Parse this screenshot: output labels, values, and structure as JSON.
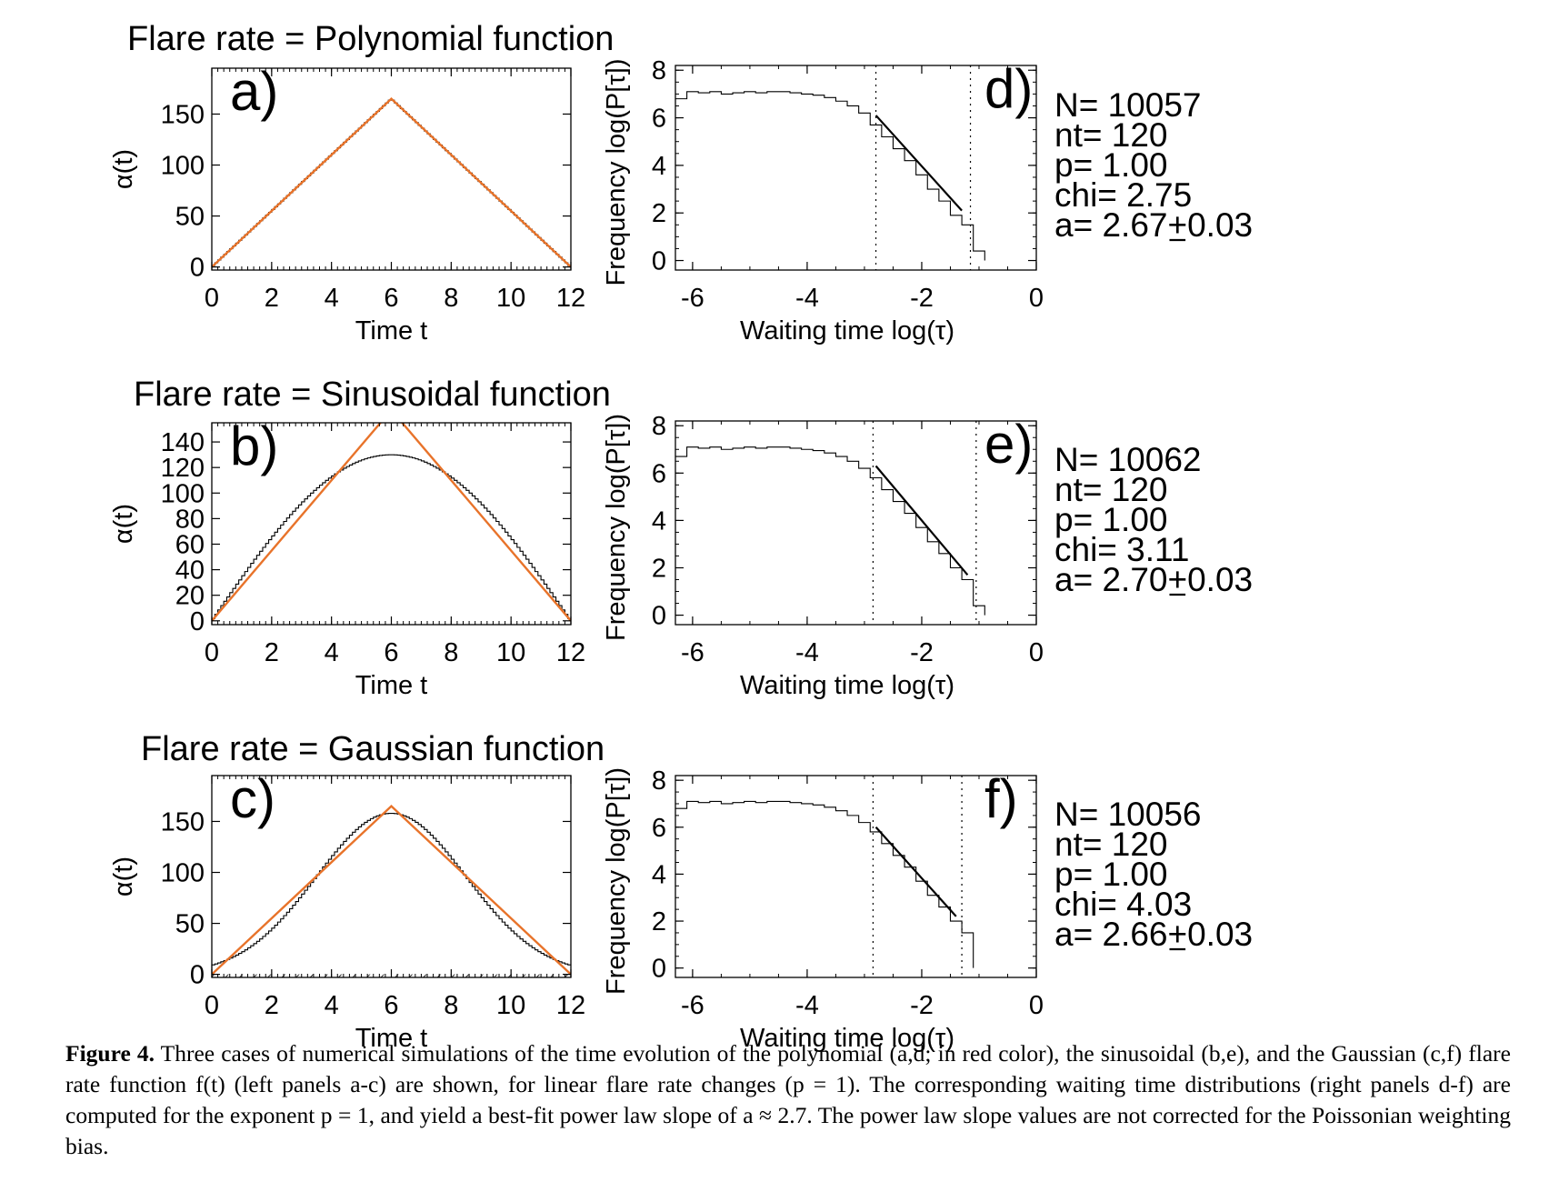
{
  "colors": {
    "model": "#e8732a",
    "histogram": "#000000",
    "fit": "#000000"
  },
  "caption": {
    "label": "Figure 4.",
    "text": "Three cases of numerical simulations of the time evolution of the polynomial (a,d; in red color), the sinusoidal (b,e), and the Gaussian (c,f) flare rate function f(t) (left panels a-c) are shown, for linear flare rate changes (p = 1). The corresponding waiting time distributions (right panels d-f) are computed for the exponent p = 1, and yield a best-fit power law slope of a ≈ 2.7. The power law slope values are not corrected for the Poissonian weighting bias."
  },
  "chart_data": [
    {
      "type": "line",
      "panel": "a)",
      "title": "Flare rate = Polynomial function",
      "xlabel": "Time t",
      "ylabel": "α(t)",
      "xlim": [
        0,
        12
      ],
      "ylim": [
        -3,
        195
      ],
      "x_ticks": [
        "0",
        "2",
        "4",
        "6",
        "8",
        "10",
        "12"
      ],
      "y_ticks": [
        "0",
        "50",
        "100",
        "150"
      ],
      "series": [
        {
          "style": "model",
          "x": [
            0,
            6,
            12
          ],
          "y": [
            0,
            165,
            0
          ]
        },
        {
          "style": "histogram",
          "shape": "triangle",
          "peak_x": 6,
          "peak_y": 165,
          "bins": 120
        }
      ]
    },
    {
      "type": "line",
      "panel": "b)",
      "title": "Flare rate = Sinusoidal function",
      "xlabel": "Time t",
      "ylabel": "α(t)",
      "xlim": [
        0,
        12
      ],
      "ylim": [
        -3,
        155
      ],
      "x_ticks": [
        "0",
        "2",
        "4",
        "6",
        "8",
        "10",
        "12"
      ],
      "y_ticks": [
        "0",
        "20",
        "40",
        "60",
        "80",
        "100",
        "120",
        "140"
      ],
      "series": [
        {
          "style": "model",
          "x": [
            0,
            6,
            12
          ],
          "y": [
            0,
            165,
            0
          ]
        },
        {
          "style": "histogram",
          "shape": "sine",
          "peak_x": 6,
          "peak_y": 130,
          "bins": 120
        }
      ]
    },
    {
      "type": "line",
      "panel": "c)",
      "title": "Flare rate = Gaussian function",
      "xlabel": "Time t",
      "ylabel": "α(t)",
      "xlim": [
        0,
        12
      ],
      "ylim": [
        -3,
        195
      ],
      "x_ticks": [
        "0",
        "2",
        "4",
        "6",
        "8",
        "10",
        "12"
      ],
      "y_ticks": [
        "0",
        "50",
        "100",
        "150"
      ],
      "hatched_band": [
        -3,
        0
      ],
      "series": [
        {
          "style": "model",
          "x": [
            0,
            6,
            12
          ],
          "y": [
            0,
            165,
            0
          ]
        },
        {
          "style": "histogram",
          "shape": "gaussian",
          "peak_x": 6,
          "peak_y": 158,
          "sigma": 2.5,
          "bins": 120
        }
      ]
    },
    {
      "type": "line",
      "panel": "d)",
      "xlabel": "Waiting time  log(τ)",
      "ylabel": "Frequency  log(P[τ])",
      "xlim": [
        -6.3,
        0
      ],
      "ylim": [
        -0.4,
        8.2
      ],
      "x_ticks": [
        "-6",
        "-4",
        "-2",
        "0"
      ],
      "y_ticks": [
        "0",
        "2",
        "4",
        "6",
        "8"
      ],
      "fit_range": [
        -2.8,
        -1.15
      ],
      "histogram": {
        "x": [
          -6.3,
          -6.1,
          -5.9,
          -5.7,
          -5.5,
          -5.3,
          -5.1,
          -4.9,
          -4.7,
          -4.5,
          -4.3,
          -4.1,
          -3.9,
          -3.7,
          -3.5,
          -3.3,
          -3.1,
          -2.9,
          -2.7,
          -2.5,
          -2.3,
          -2.1,
          -1.9,
          -1.7,
          -1.5,
          -1.3,
          -1.1,
          -0.9
        ],
        "y": [
          6.8,
          7.1,
          7.05,
          7.1,
          7.0,
          7.05,
          7.1,
          7.05,
          7.1,
          7.1,
          7.05,
          7.0,
          6.95,
          6.85,
          6.7,
          6.5,
          6.2,
          5.7,
          5.2,
          4.7,
          4.2,
          3.6,
          3.0,
          2.5,
          1.9,
          1.5,
          0.4,
          0
        ]
      },
      "fit_line": {
        "x": [
          -2.8,
          -1.3
        ],
        "y": [
          6.1,
          2.1
        ]
      },
      "stats": {
        "N": "N= 10057",
        "nt": "nt=   120",
        "p": "p= 1.00",
        "chi": "chi= 2.75",
        "a": "a= 2.67+0.03"
      }
    },
    {
      "type": "line",
      "panel": "e)",
      "xlabel": "Waiting time  log(τ)",
      "ylabel": "Frequency  log(P[τ])",
      "xlim": [
        -6.3,
        0
      ],
      "ylim": [
        -0.4,
        8.2
      ],
      "x_ticks": [
        "-6",
        "-4",
        "-2",
        "0"
      ],
      "y_ticks": [
        "0",
        "2",
        "4",
        "6",
        "8"
      ],
      "fit_range": [
        -2.85,
        -1.05
      ],
      "histogram": {
        "x": [
          -6.3,
          -6.1,
          -5.9,
          -5.7,
          -5.5,
          -5.3,
          -5.1,
          -4.9,
          -4.7,
          -4.5,
          -4.3,
          -4.1,
          -3.9,
          -3.7,
          -3.5,
          -3.3,
          -3.1,
          -2.9,
          -2.7,
          -2.5,
          -2.3,
          -2.1,
          -1.9,
          -1.7,
          -1.5,
          -1.3,
          -1.1,
          -0.9
        ],
        "y": [
          6.7,
          7.1,
          7.05,
          7.1,
          7.0,
          7.05,
          7.1,
          7.05,
          7.1,
          7.1,
          7.05,
          7.0,
          6.95,
          6.85,
          6.7,
          6.5,
          6.2,
          5.8,
          5.3,
          4.8,
          4.3,
          3.7,
          3.1,
          2.6,
          2.0,
          1.5,
          0.4,
          0
        ]
      },
      "fit_line": {
        "x": [
          -2.8,
          -1.2
        ],
        "y": [
          6.3,
          1.7
        ]
      },
      "stats": {
        "N": "N= 10062",
        "nt": "nt=   120",
        "p": "p= 1.00",
        "chi": "chi= 3.11",
        "a": "a= 2.70+0.03"
      }
    },
    {
      "type": "line",
      "panel": "f)",
      "xlabel": "Waiting time  log(τ)",
      "ylabel": "Frequency  log(P[τ])",
      "xlim": [
        -6.3,
        0
      ],
      "ylim": [
        -0.4,
        8.2
      ],
      "x_ticks": [
        "-6",
        "-4",
        "-2",
        "0"
      ],
      "y_ticks": [
        "0",
        "2",
        "4",
        "6",
        "8"
      ],
      "fit_range": [
        -2.85,
        -1.3
      ],
      "histogram": {
        "x": [
          -6.3,
          -6.1,
          -5.9,
          -5.7,
          -5.5,
          -5.3,
          -5.1,
          -4.9,
          -4.7,
          -4.5,
          -4.3,
          -4.1,
          -3.9,
          -3.7,
          -3.5,
          -3.3,
          -3.1,
          -2.9,
          -2.7,
          -2.5,
          -2.3,
          -2.1,
          -1.9,
          -1.7,
          -1.5,
          -1.3,
          -1.1
        ],
        "y": [
          6.8,
          7.1,
          7.05,
          7.1,
          7.0,
          7.05,
          7.1,
          7.05,
          7.1,
          7.1,
          7.05,
          7.0,
          6.95,
          6.85,
          6.7,
          6.5,
          6.2,
          5.8,
          5.3,
          4.8,
          4.3,
          3.7,
          3.1,
          2.6,
          2.0,
          1.5,
          0
        ]
      },
      "fit_line": {
        "x": [
          -2.8,
          -1.4
        ],
        "y": [
          6.0,
          2.2
        ]
      },
      "stats": {
        "N": "N= 10056",
        "nt": "nt=   120",
        "p": "p= 1.00",
        "chi": "chi= 4.03",
        "a": "a= 2.66+0.03"
      }
    }
  ]
}
